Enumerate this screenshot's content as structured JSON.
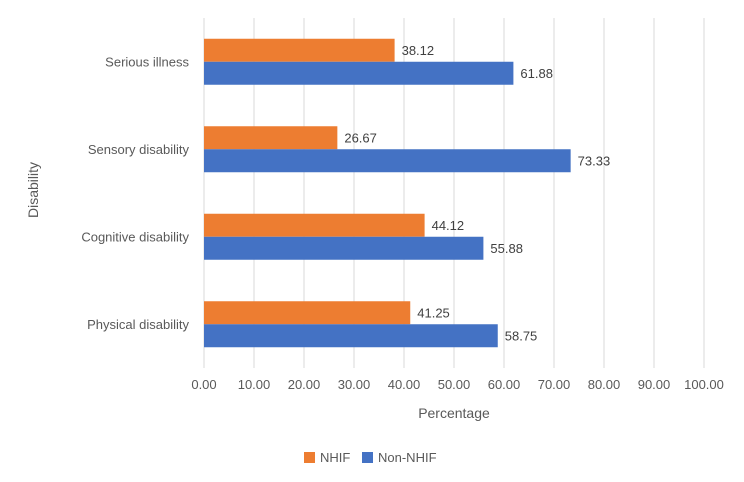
{
  "chart_data": {
    "type": "bar",
    "orientation": "horizontal",
    "title": "",
    "xlabel": "Percentage",
    "ylabel": "Disability",
    "xlim": [
      0,
      100
    ],
    "xtick_step": 10,
    "xtick_labels": [
      "0.00",
      "10.00",
      "20.00",
      "30.00",
      "40.00",
      "50.00",
      "60.00",
      "70.00",
      "80.00",
      "90.00",
      "100.00"
    ],
    "grid": "vertical",
    "legend_position": "bottom",
    "categories": [
      "Serious illness",
      "Sensory disability",
      "Cognitive disability",
      "Physical disability"
    ],
    "series": [
      {
        "name": "NHIF",
        "color": "#ED7D31",
        "values": [
          38.12,
          26.67,
          44.12,
          41.25
        ]
      },
      {
        "name": "Non-NHIF",
        "color": "#4472C4",
        "values": [
          61.88,
          73.33,
          55.88,
          58.75
        ]
      }
    ]
  }
}
